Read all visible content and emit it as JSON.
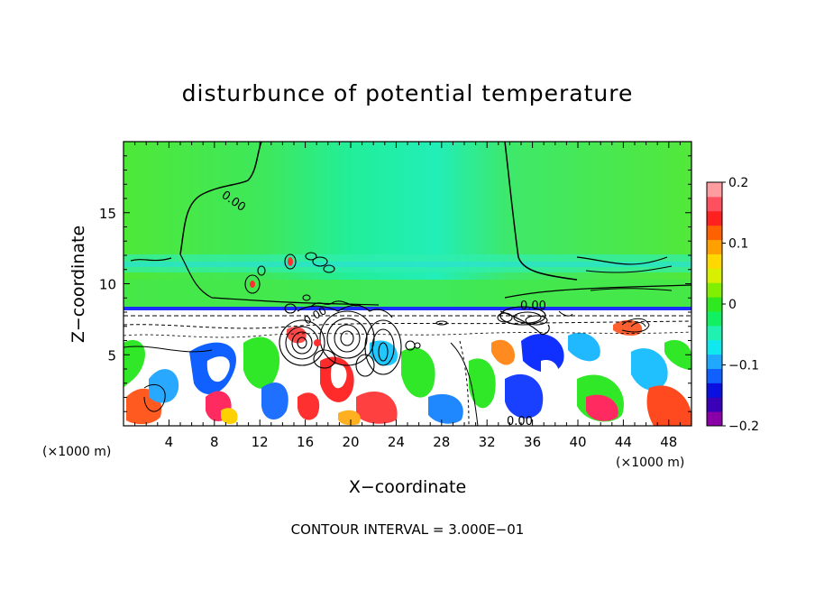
{
  "chart_data": {
    "type": "heatmap",
    "title": "disturbunce of potential temperature",
    "xlabel": "X−coordinate",
    "ylabel": "Z−coordinate",
    "x_unit": "(×1000 m)",
    "y_unit": "(×1000 m)",
    "xlim": [
      0,
      50
    ],
    "ylim": [
      0,
      20
    ],
    "x_ticks": [
      4,
      8,
      12,
      16,
      20,
      24,
      28,
      32,
      36,
      40,
      44,
      48
    ],
    "y_ticks": [
      5,
      10,
      15
    ],
    "colorbar": {
      "range": [
        -0.2,
        0.2
      ],
      "ticks": [
        "0.2",
        "0.1",
        "0",
        "−0.1",
        "−0.2"
      ],
      "colors": [
        "#8a00a8",
        "#3a00b8",
        "#0a10e0",
        "#1060ff",
        "#20a8ff",
        "#10e8f0",
        "#20f0b0",
        "#10f060",
        "#30e820",
        "#80f000",
        "#d8f000",
        "#ffd800",
        "#ffa000",
        "#ff6000",
        "#ff2020",
        "#ff5060",
        "#ff9ca0"
      ]
    },
    "contour_labels": [
      "0.00",
      "0.00",
      "0.00",
      "0.00"
    ],
    "contour_interval_text": "CONTOUR INTERVAL = 3.000E−01"
  }
}
